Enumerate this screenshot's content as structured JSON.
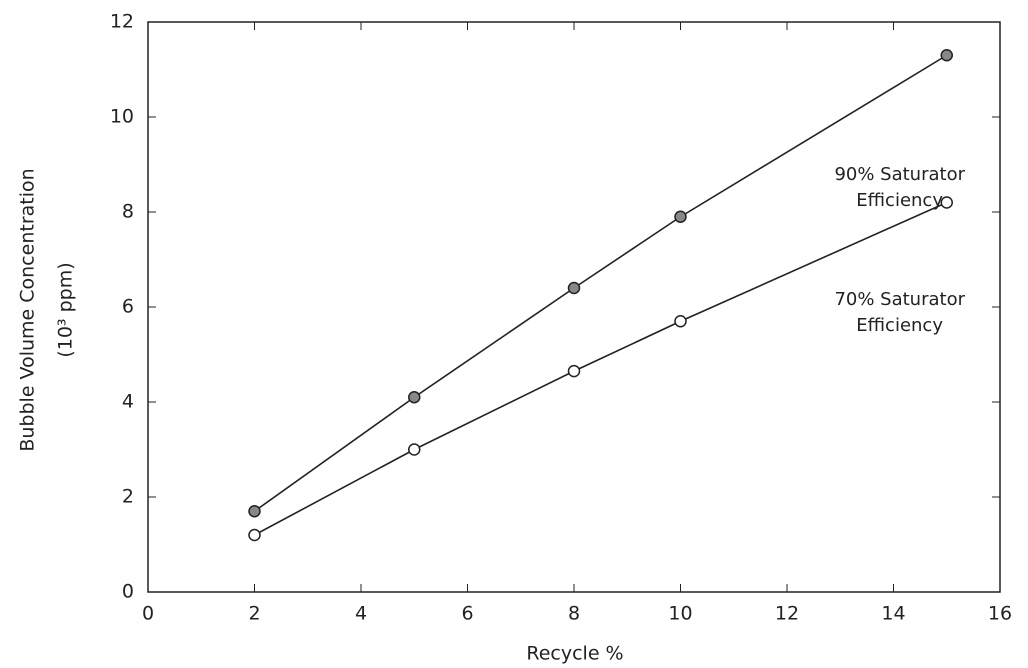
{
  "chart_data": {
    "type": "line",
    "x_label": "Recycle %",
    "y_label": [
      "Bubble Volume Concentration",
      "(10³ ppm)"
    ],
    "x": [
      2,
      5,
      8,
      10,
      15
    ],
    "series": [
      {
        "values": [
          1.7,
          4.1,
          6.4,
          7.9,
          11.3
        ],
        "color": "#222",
        "marker": "filled"
      },
      {
        "values": [
          1.2,
          3.0,
          4.65,
          5.7,
          8.2
        ],
        "color": "#222",
        "marker": "open"
      }
    ],
    "annotations": [
      [
        "90% Saturator",
        "Efficiency"
      ],
      [
        "70% Saturator",
        "Efficiency"
      ]
    ],
    "xlim": [
      0,
      16
    ],
    "xticks": [
      0,
      2,
      4,
      6,
      8,
      10,
      12,
      14,
      16
    ],
    "ylim": [
      0,
      12
    ],
    "yticks": [
      0,
      2,
      4,
      6,
      8,
      10,
      12
    ]
  }
}
